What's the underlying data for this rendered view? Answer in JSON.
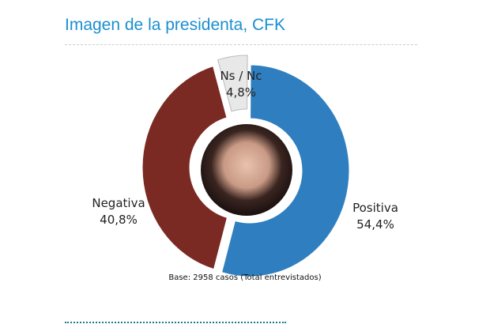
{
  "page": {
    "title": "Imagen de la presidenta, CFK"
  },
  "chart_data": {
    "type": "donut",
    "title": "",
    "slices": [
      {
        "label": "Positiva",
        "value": 54.4,
        "display": "54,4%",
        "color": "#2f7fc0"
      },
      {
        "label": "Negativa",
        "value": 40.8,
        "display": "40,8%",
        "color": "#7a2a22"
      },
      {
        "label": "Ns / Nc",
        "value": 4.8,
        "display": "4,8%",
        "color": "#e8e8e8"
      }
    ],
    "footnote": "Base: 2958 casos (Total entrevistados)",
    "center_image": "portrait photo"
  }
}
